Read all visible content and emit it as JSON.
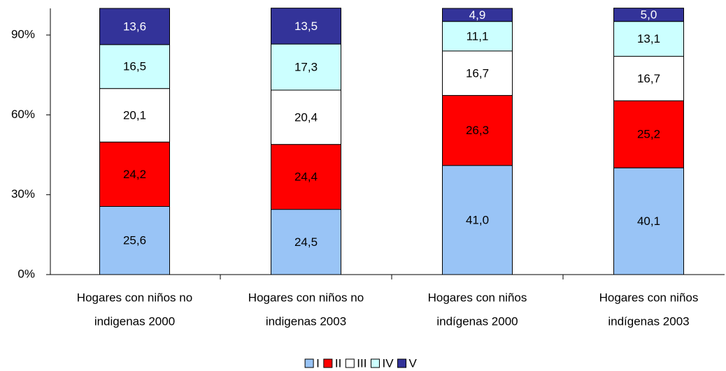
{
  "chart_data": {
    "type": "stacked_bar",
    "categories": [
      [
        "Hogares con niños  no",
        "indigenas 2000"
      ],
      [
        "Hogares con niños  no",
        "indigenas 2003"
      ],
      [
        "Hogares con niños",
        "indígenas 2000"
      ],
      [
        "Hogares con niños",
        "indígenas 2003"
      ]
    ],
    "series": [
      {
        "name": "I",
        "color": "#99c4f6",
        "label_color": "#000000",
        "values": [
          25.6,
          24.5,
          41.0,
          40.1
        ],
        "value_labels": [
          "25,6",
          "24,5",
          "41,0",
          "40,1"
        ]
      },
      {
        "name": "II",
        "color": "#ff0000",
        "label_color": "#000000",
        "values": [
          24.2,
          24.4,
          26.3,
          25.2
        ],
        "value_labels": [
          "24,2",
          "24,4",
          "26,3",
          "25,2"
        ]
      },
      {
        "name": "III",
        "color": "#ffffff",
        "label_color": "#000000",
        "values": [
          20.1,
          20.4,
          16.7,
          16.7
        ],
        "value_labels": [
          "20,1",
          "20,4",
          "16,7",
          "16,7"
        ]
      },
      {
        "name": "IV",
        "color": "#ccffff",
        "label_color": "#000000",
        "values": [
          16.5,
          17.3,
          11.1,
          13.1
        ],
        "value_labels": [
          "16,5",
          "17,3",
          "11,1",
          "13,1"
        ]
      },
      {
        "name": "V",
        "color": "#333399",
        "label_color": "#ffffff",
        "values": [
          13.6,
          13.5,
          4.9,
          5.0
        ],
        "value_labels": [
          "13,6",
          "13,5",
          "4,9",
          "5,0"
        ]
      }
    ],
    "ylim": [
      0,
      100
    ],
    "yticks": [
      {
        "value": 0,
        "label": "0%"
      },
      {
        "value": 30,
        "label": "30%"
      },
      {
        "value": 60,
        "label": "60%"
      },
      {
        "value": 90,
        "label": "90%"
      }
    ],
    "grid": false,
    "legend": "bottom"
  }
}
